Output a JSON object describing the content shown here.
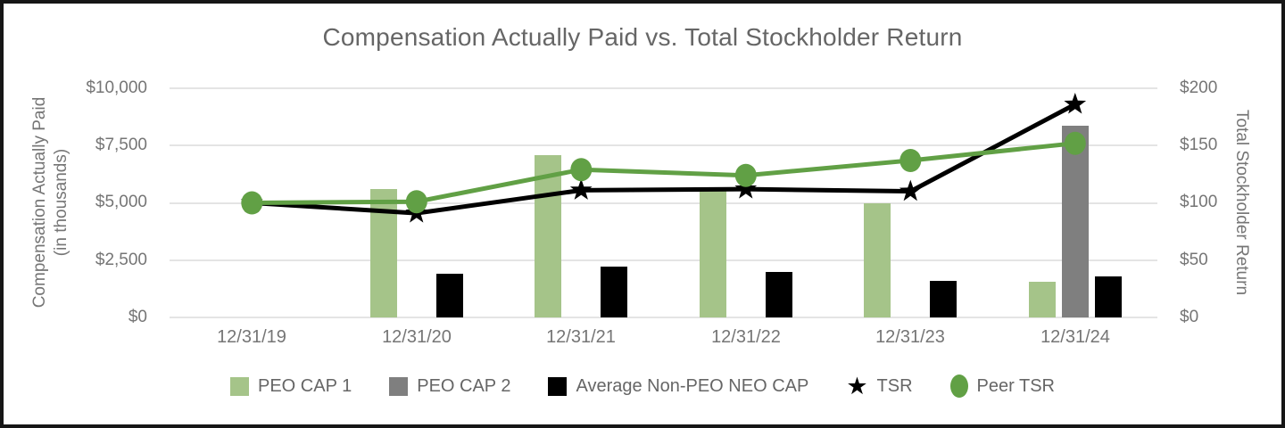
{
  "chart_data": {
    "type": "combo-bar-line",
    "title": "Compensation Actually Paid vs. Total Stockholder Return",
    "categories": [
      "12/31/19",
      "12/31/20",
      "12/31/21",
      "12/31/22",
      "12/31/23",
      "12/31/24"
    ],
    "bar_series": [
      {
        "name": "PEO CAP 1",
        "color": "#a5c489",
        "axis": "left",
        "values": [
          null,
          5600,
          7100,
          5600,
          5000,
          1550
        ]
      },
      {
        "name": "PEO CAP 2",
        "color": "#7f7f7f",
        "axis": "left",
        "values": [
          null,
          null,
          null,
          null,
          null,
          8350
        ]
      },
      {
        "name": "Average Non-PEO NEO CAP",
        "color": "#000000",
        "axis": "left",
        "values": [
          null,
          1900,
          2200,
          2000,
          1600,
          1800
        ]
      }
    ],
    "line_series": [
      {
        "name": "TSR",
        "color": "#000000",
        "marker": "star",
        "axis": "right",
        "values": [
          100,
          91,
          111,
          112,
          110,
          186
        ]
      },
      {
        "name": "Peer TSR",
        "color": "#61a045",
        "marker": "circle",
        "axis": "right",
        "values": [
          100,
          101,
          129,
          124,
          137,
          152
        ]
      }
    ],
    "left_axis": {
      "label": "Compensation Actually Paid",
      "sublabel": "(in thousands)",
      "ticks": [
        "$0",
        "$2,500",
        "$5,000",
        "$7,500",
        "$10,000"
      ],
      "lim": [
        0,
        10000
      ]
    },
    "right_axis": {
      "label": "Total Stockholder Return",
      "ticks": [
        "$0",
        "$50",
        "$100",
        "$150",
        "$200"
      ],
      "lim": [
        0,
        200
      ]
    },
    "grid": true,
    "gridline_color": "#e4e4e4",
    "legend_position": "bottom"
  },
  "icons": {
    "tsr_star": "★"
  }
}
